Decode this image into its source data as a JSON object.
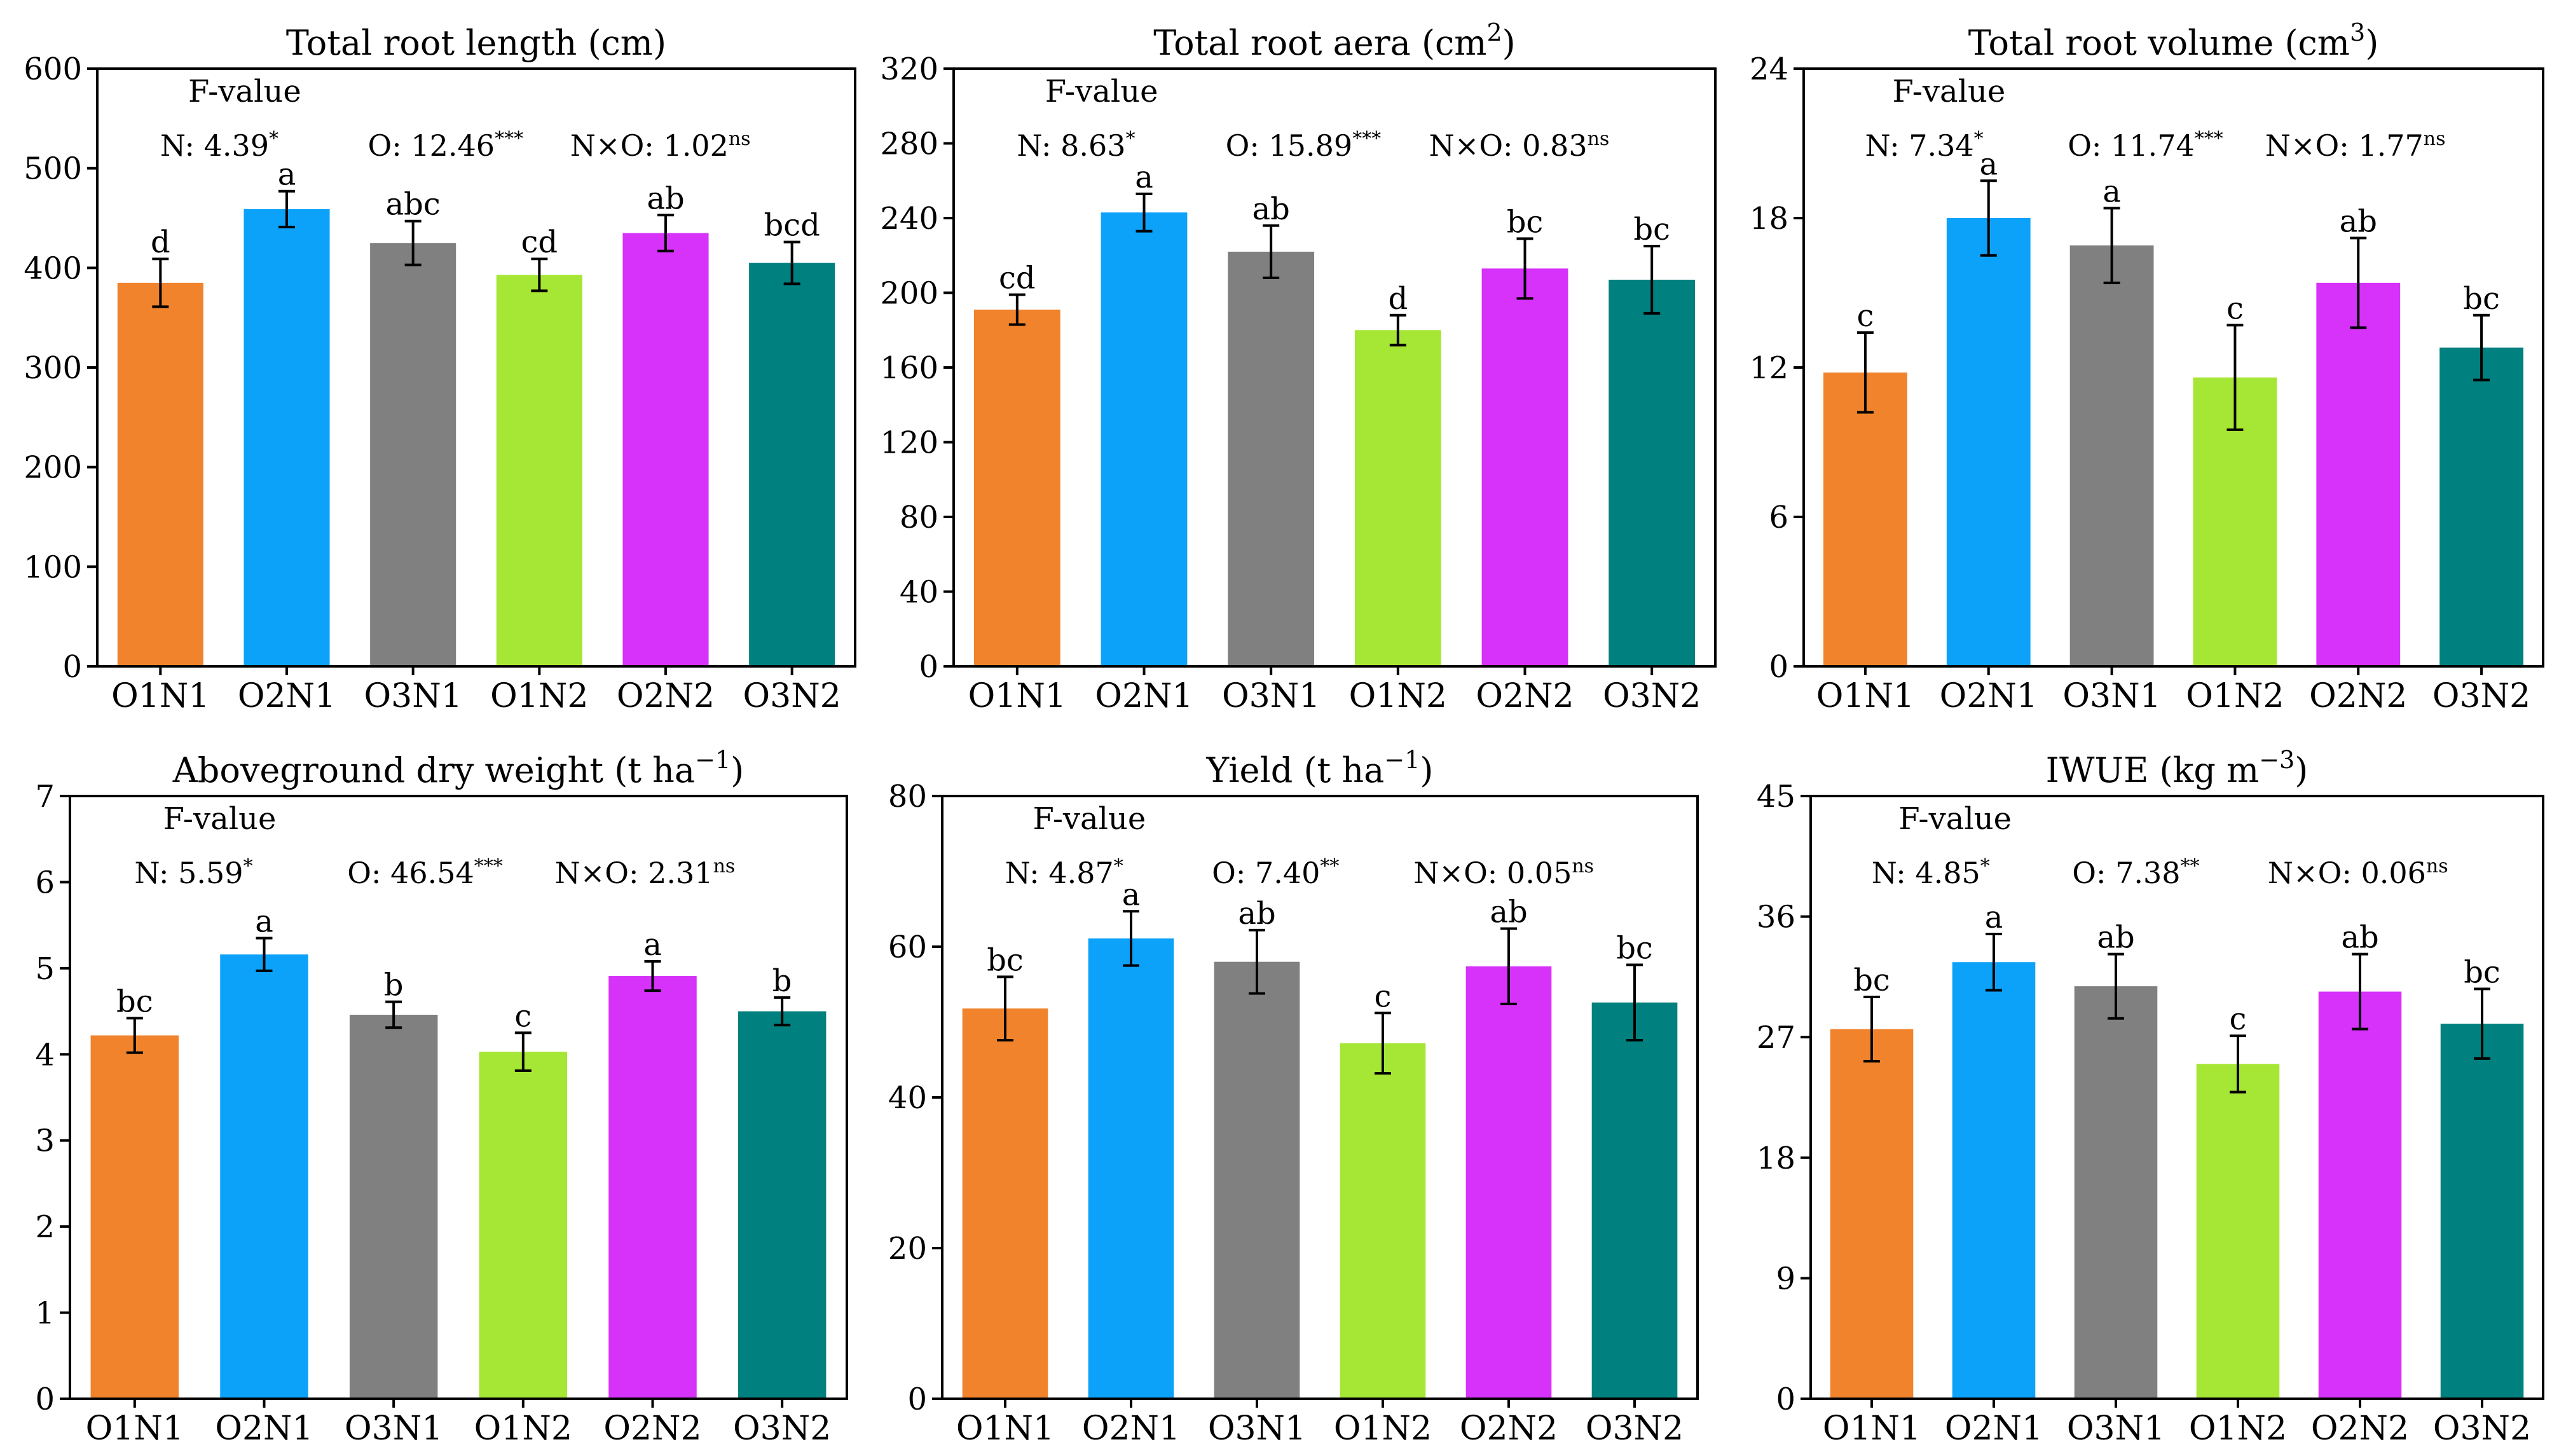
{
  "chart_data": [
    {
      "type": "bar",
      "title": "Total root length (cm)",
      "categories": [
        "O1N1",
        "O2N1",
        "O3N1",
        "O1N2",
        "O2N2",
        "O3N2"
      ],
      "values": [
        385,
        459,
        425,
        393,
        435,
        405
      ],
      "errors": [
        24,
        18,
        22,
        16,
        18,
        21
      ],
      "letters": [
        "d",
        "a",
        "abc",
        "cd",
        "ab",
        "bcd"
      ],
      "colors": [
        "#F0832B",
        "#0DA2FA",
        "#808080",
        "#A6E634",
        "#D632FA",
        "#00807E"
      ],
      "ylim": [
        0,
        600
      ],
      "yticks": [
        0,
        100,
        200,
        300,
        400,
        500,
        600
      ],
      "xlabel": "",
      "ylabel": "",
      "fvalue_label": "F-value",
      "stats": [
        {
          "name": "N: 4.39",
          "sig": "*"
        },
        {
          "name": "O: 12.46",
          "sig": "***"
        },
        {
          "name": "N×O: 1.02",
          "sig": "ns"
        }
      ]
    },
    {
      "type": "bar",
      "title": "Total root aera (cm2)",
      "categories": [
        "O1N1",
        "O2N1",
        "O3N1",
        "O1N2",
        "O2N2",
        "O3N2"
      ],
      "values": [
        191,
        243,
        222,
        180,
        213,
        207
      ],
      "errors": [
        8,
        10,
        14,
        8,
        16,
        18
      ],
      "letters": [
        "cd",
        "a",
        "ab",
        "d",
        "bc",
        "bc"
      ],
      "colors": [
        "#F0832B",
        "#0DA2FA",
        "#808080",
        "#A6E634",
        "#D632FA",
        "#00807E"
      ],
      "ylim": [
        0,
        320
      ],
      "yticks": [
        0,
        40,
        80,
        120,
        160,
        200,
        240,
        280,
        320
      ],
      "xlabel": "",
      "ylabel": "",
      "fvalue_label": "F-value",
      "stats": [
        {
          "name": "N: 8.63",
          "sig": "*"
        },
        {
          "name": "O: 15.89",
          "sig": "***"
        },
        {
          "name": "N×O: 0.83",
          "sig": "ns"
        }
      ]
    },
    {
      "type": "bar",
      "title": "Total root volume (cm3)",
      "categories": [
        "O1N1",
        "O2N1",
        "O3N1",
        "O1N2",
        "O2N2",
        "O3N2"
      ],
      "values": [
        11.8,
        18.0,
        16.9,
        11.6,
        15.4,
        12.8
      ],
      "errors": [
        1.6,
        1.5,
        1.5,
        2.1,
        1.8,
        1.3
      ],
      "letters": [
        "c",
        "a",
        "a",
        "c",
        "ab",
        "bc"
      ],
      "colors": [
        "#F0832B",
        "#0DA2FA",
        "#808080",
        "#A6E634",
        "#D632FA",
        "#00807E"
      ],
      "ylim": [
        0,
        24
      ],
      "yticks": [
        0,
        6,
        12,
        18,
        24
      ],
      "xlabel": "",
      "ylabel": "",
      "fvalue_label": "F-value",
      "stats": [
        {
          "name": "N: 7.34",
          "sig": "*"
        },
        {
          "name": "O: 11.74",
          "sig": "***"
        },
        {
          "name": "N×O: 1.77",
          "sig": "ns"
        }
      ]
    },
    {
      "type": "bar",
      "title": "Aboveground dry weight (t ha−1)",
      "categories": [
        "O1N1",
        "O2N1",
        "O3N1",
        "O1N2",
        "O2N2",
        "O3N2"
      ],
      "values": [
        4.22,
        5.16,
        4.46,
        4.03,
        4.91,
        4.5
      ],
      "errors": [
        0.2,
        0.19,
        0.15,
        0.22,
        0.17,
        0.16
      ],
      "letters": [
        "bc",
        "a",
        "b",
        "c",
        "a",
        "b"
      ],
      "colors": [
        "#F0832B",
        "#0DA2FA",
        "#808080",
        "#A6E634",
        "#D632FA",
        "#00807E"
      ],
      "ylim": [
        0,
        7
      ],
      "yticks": [
        0,
        1,
        2,
        3,
        4,
        5,
        6,
        7
      ],
      "xlabel": "",
      "ylabel": "",
      "fvalue_label": "F-value",
      "stats": [
        {
          "name": "N: 5.59",
          "sig": "*"
        },
        {
          "name": "O: 46.54",
          "sig": "***"
        },
        {
          "name": "N×O: 2.31",
          "sig": "ns"
        }
      ]
    },
    {
      "type": "bar",
      "title": "Yield (t ha−1)",
      "categories": [
        "O1N1",
        "O2N1",
        "O3N1",
        "O1N2",
        "O2N2",
        "O3N2"
      ],
      "values": [
        51.8,
        61.1,
        58.0,
        47.2,
        57.4,
        52.6
      ],
      "errors": [
        4.2,
        3.6,
        4.2,
        4.0,
        5.0,
        5.0
      ],
      "letters": [
        "bc",
        "a",
        "ab",
        "c",
        "ab",
        "bc"
      ],
      "colors": [
        "#F0832B",
        "#0DA2FA",
        "#808080",
        "#A6E634",
        "#D632FA",
        "#00807E"
      ],
      "ylim": [
        0,
        80
      ],
      "yticks": [
        0,
        20,
        40,
        60,
        80
      ],
      "xlabel": "",
      "ylabel": "",
      "fvalue_label": "F-value",
      "stats": [
        {
          "name": "N: 4.87",
          "sig": "*"
        },
        {
          "name": "O: 7.40",
          "sig": "**"
        },
        {
          "name": "N×O: 0.05",
          "sig": "ns"
        }
      ]
    },
    {
      "type": "bar",
      "title": "IWUE (kg m−3)",
      "categories": [
        "O1N1",
        "O2N1",
        "O3N1",
        "O1N2",
        "O2N2",
        "O3N2"
      ],
      "values": [
        27.6,
        32.6,
        30.8,
        25.0,
        30.4,
        28.0
      ],
      "errors": [
        2.4,
        2.1,
        2.4,
        2.1,
        2.8,
        2.6
      ],
      "letters": [
        "bc",
        "a",
        "ab",
        "c",
        "ab",
        "bc"
      ],
      "colors": [
        "#F0832B",
        "#0DA2FA",
        "#808080",
        "#A6E634",
        "#D632FA",
        "#00807E"
      ],
      "ylim": [
        0,
        45
      ],
      "yticks": [
        0,
        9,
        18,
        27,
        36,
        45
      ],
      "xlabel": "",
      "ylabel": "",
      "fvalue_label": "F-value",
      "stats": [
        {
          "name": "N: 4.85",
          "sig": "*"
        },
        {
          "name": "O: 7.38",
          "sig": "**"
        },
        {
          "name": "N×O: 0.06",
          "sig": "ns"
        }
      ]
    }
  ]
}
